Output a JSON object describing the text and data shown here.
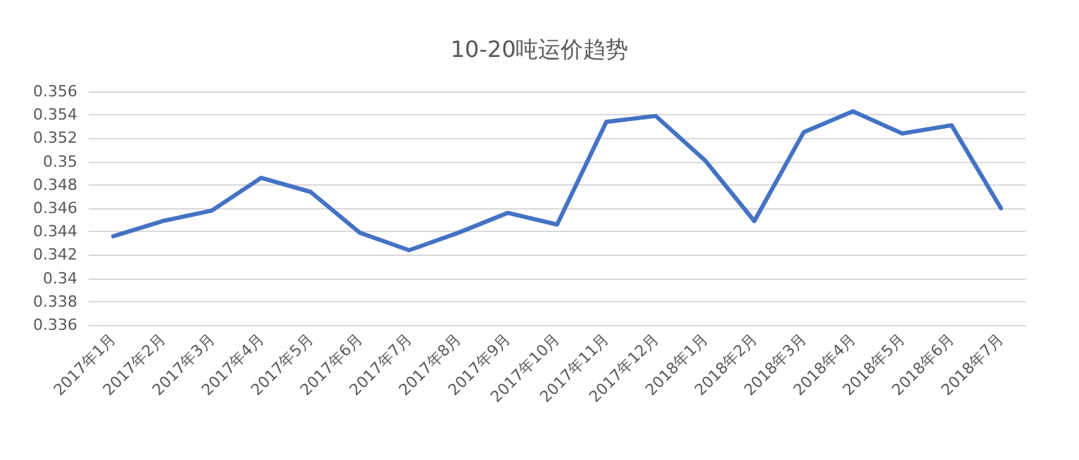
{
  "chart_data": {
    "type": "line",
    "title": "10-20吨运价趋势",
    "categories": [
      "2017年1月",
      "2017年2月",
      "2017年3月",
      "2017年4月",
      "2017年5月",
      "2017年6月",
      "2017年7月",
      "2017年8月",
      "2017年9月",
      "2017年10月",
      "2017年11月",
      "2017年12月",
      "2018年1月",
      "2018年2月",
      "2018年3月",
      "2018年4月",
      "2018年5月",
      "2018年6月",
      "2018年7月"
    ],
    "series": [
      {
        "color": "#4472c4",
        "values": [
          0.3436,
          0.3449,
          0.3458,
          0.3486,
          0.3474,
          0.3439,
          0.3424,
          0.3439,
          0.3456,
          0.3446,
          0.3534,
          0.3539,
          0.3501,
          0.3449,
          0.3525,
          0.3543,
          0.3524,
          0.3531,
          0.346
        ]
      }
    ],
    "ylim": [
      0.336,
      0.356
    ],
    "yticks": [
      0.336,
      0.338,
      0.34,
      0.342,
      0.344,
      0.346,
      0.348,
      0.35,
      0.352,
      0.354,
      0.356
    ],
    "grid": "y",
    "marker": "none",
    "line_style": "solid"
  }
}
